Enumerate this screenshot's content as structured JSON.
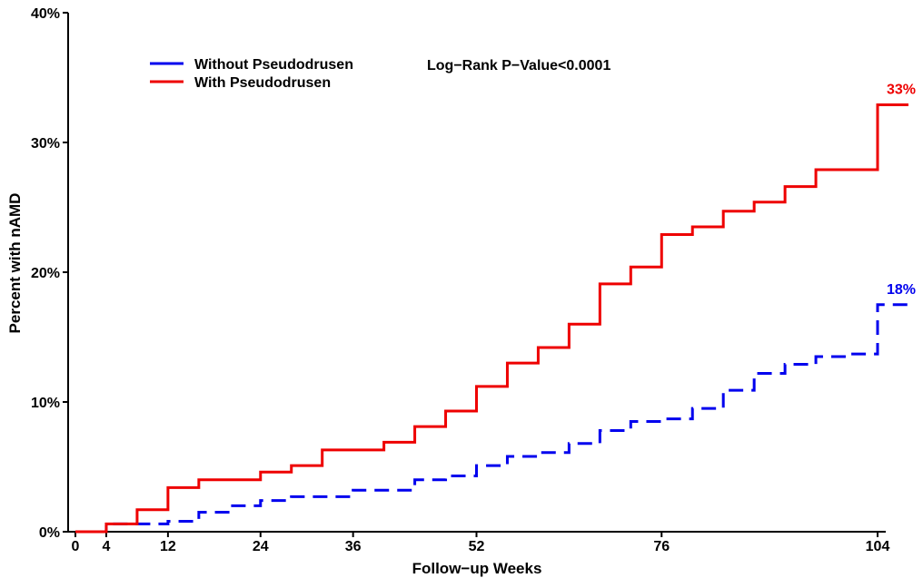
{
  "chart_data": {
    "type": "line",
    "step": true,
    "title": "",
    "annotation": "Log−Rank P−Value<0.0001",
    "xlabel": "Follow−up Weeks",
    "ylabel": "Percent with nAMD",
    "xlim": [
      0,
      104
    ],
    "ylim": [
      0,
      40
    ],
    "xticks": [
      0,
      4,
      12,
      24,
      36,
      52,
      76,
      104
    ],
    "yticks": [
      0,
      10,
      20,
      30,
      40
    ],
    "ytick_labels": [
      "0%",
      "10%",
      "20%",
      "30%",
      "40%"
    ],
    "grid": false,
    "legend_position": "top-left",
    "series": [
      {
        "name": "Without Pseudodrusen",
        "color": "#0000ee",
        "dash": "dashed",
        "end_label": "18%",
        "x": [
          0,
          4,
          12,
          16,
          20,
          24,
          28,
          32,
          36,
          44,
          48,
          52,
          56,
          60,
          64,
          68,
          72,
          76,
          80,
          84,
          88,
          92,
          96,
          100,
          104,
          108
        ],
        "y": [
          0,
          0.6,
          0.8,
          1.5,
          2.0,
          2.4,
          2.7,
          2.7,
          3.2,
          4.0,
          4.3,
          5.1,
          5.8,
          6.1,
          6.8,
          7.8,
          8.5,
          8.7,
          9.5,
          10.9,
          12.2,
          12.9,
          13.5,
          13.7,
          17.5,
          17.5
        ]
      },
      {
        "name": "With Pseudodrusen",
        "color": "#ee0000",
        "dash": "solid",
        "end_label": "33%",
        "x": [
          0,
          4,
          8,
          12,
          16,
          20,
          24,
          28,
          32,
          36,
          40,
          44,
          48,
          52,
          56,
          60,
          64,
          68,
          72,
          76,
          80,
          84,
          88,
          92,
          96,
          104,
          108
        ],
        "y": [
          0,
          0.6,
          1.7,
          3.4,
          4.0,
          4.0,
          4.6,
          5.1,
          6.3,
          6.3,
          6.9,
          8.1,
          9.3,
          11.2,
          13.0,
          14.2,
          16.0,
          19.1,
          20.4,
          22.9,
          23.5,
          24.7,
          25.4,
          26.6,
          27.9,
          32.9,
          32.9
        ]
      }
    ]
  }
}
